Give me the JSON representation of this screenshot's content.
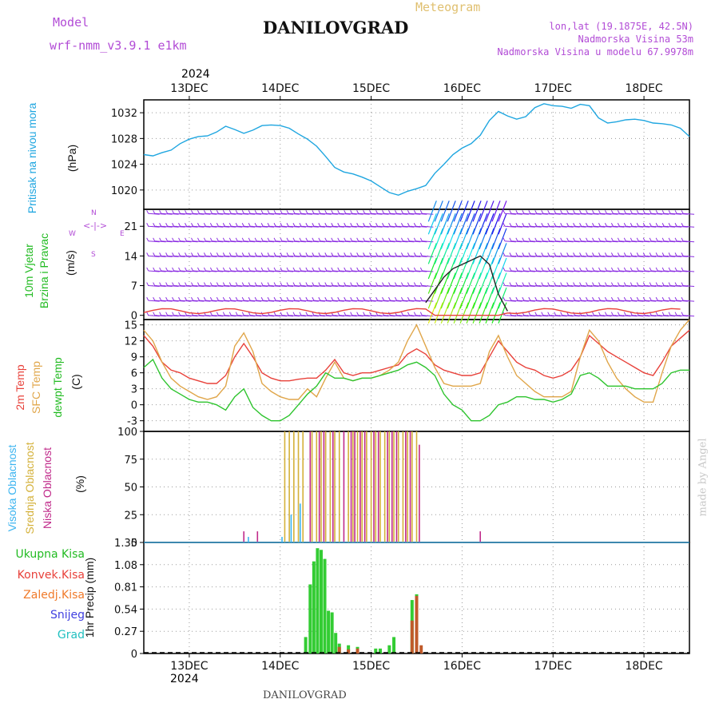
{
  "header": {
    "model_label": "Model",
    "model_name": "wrf-nmm_v3.9.1  e1km",
    "meteogram_label": "Meteogram",
    "station": "DANILOVGRAD",
    "lonlat": "lon,lat (19.1875E, 42.5N)",
    "altitude": "Nadmorska Visina 53m",
    "model_altitude": "Nadmorska Visina u modelu 67.9978m",
    "watermark": "made by Angel",
    "footer_station": "DANILOVGRAD"
  },
  "time_axis": {
    "year": "2024",
    "day_labels": [
      "13DEC",
      "14DEC",
      "15DEC",
      "16DEC",
      "17DEC",
      "18DEC"
    ],
    "day_positions": [
      13,
      14,
      15,
      16,
      17,
      18
    ],
    "range": [
      12.5,
      18.5
    ]
  },
  "colors": {
    "pressure": "#1fa6e0",
    "temp2m": "#e8413a",
    "sfc": "#e0a64a",
    "dew": "#2ec42e",
    "high_cloud": "#3cb4f0",
    "mid_cloud": "#d4b13a",
    "low_cloud": "#c02a8a",
    "precip": "#33cc33",
    "precip_conv": "#c05a2a",
    "wind": "#8a2be2",
    "label_pressure": "#1fa6e0",
    "label_wind": "#22bb22"
  },
  "panels": {
    "pressure": {
      "labels": [
        "Pritisak na nivou mora",
        "(hPa)"
      ],
      "yticks": [
        "1020",
        "1024",
        "1028",
        "1032"
      ]
    },
    "wind": {
      "labels": [
        "10m Vjetar",
        "Brzina i Pravac",
        "(m/s)"
      ],
      "compass": "N",
      "compass_w": "W",
      "compass_e": "E",
      "compass_s": "S",
      "yticks": [
        "0",
        "7",
        "14",
        "21"
      ]
    },
    "temp": {
      "labels": [
        "2m Temp",
        "SFC Temp",
        "dewpt Temp",
        "(C)"
      ],
      "yticks": [
        "-3",
        "0",
        "3",
        "6",
        "9",
        "12",
        "15"
      ]
    },
    "cloud": {
      "labels": [
        "Visoka Oblacnost",
        "Srednja Oblacnost",
        "Niska Oblacnost",
        "(%)"
      ],
      "yticks": [
        "0",
        "25",
        "50",
        "75",
        "100"
      ]
    },
    "precip": {
      "legend": [
        "Ukupna Kisa",
        "Konvek.Kisa",
        "Zaledj.Kisa",
        "Snijeg",
        "Grad"
      ],
      "legend_colors": [
        "#22bb22",
        "#e8413a",
        "#f07a2a",
        "#4040e0",
        "#22c0c0"
      ],
      "ylabel": "1hr Precip (mm)",
      "yticks": [
        "0",
        "0.27",
        "0.54",
        "0.81",
        "1.08",
        "1.35"
      ]
    }
  },
  "chart_data": [
    {
      "type": "line",
      "title": "Pritisak na nivou mora",
      "ylabel": "(hPa)",
      "ylim": [
        1017,
        1034
      ],
      "x": [
        12.5,
        12.6,
        12.7,
        12.8,
        12.9,
        13.0,
        13.1,
        13.2,
        13.3,
        13.4,
        13.5,
        13.6,
        13.7,
        13.8,
        13.9,
        14.0,
        14.1,
        14.2,
        14.3,
        14.4,
        14.5,
        14.6,
        14.7,
        14.8,
        14.9,
        15.0,
        15.1,
        15.2,
        15.3,
        15.4,
        15.5,
        15.6,
        15.7,
        15.8,
        15.9,
        16.0,
        16.1,
        16.2,
        16.3,
        16.4,
        16.5,
        16.6,
        16.7,
        16.8,
        16.9,
        17.0,
        17.1,
        17.2,
        17.3,
        17.4,
        17.5,
        17.6,
        17.7,
        17.8,
        17.9,
        18.0,
        18.1,
        18.2,
        18.3,
        18.4,
        18.5
      ],
      "series": [
        {
          "values": [
            1025.5,
            1025.3,
            1025.8,
            1026.2,
            1027.2,
            1027.9,
            1028.3,
            1028.4,
            1029.0,
            1029.9,
            1029.4,
            1028.8,
            1029.3,
            1030.0,
            1030.1,
            1030.0,
            1029.6,
            1028.7,
            1027.9,
            1026.8,
            1025.2,
            1023.5,
            1022.8,
            1022.5,
            1022.0,
            1021.4,
            1020.5,
            1019.6,
            1019.2,
            1019.8,
            1020.2,
            1020.7,
            1022.6,
            1024.0,
            1025.5,
            1026.5,
            1027.2,
            1028.5,
            1030.8,
            1032.2,
            1031.5,
            1031.0,
            1031.4,
            1032.8,
            1033.4,
            1033.1,
            1033.0,
            1032.7,
            1033.3,
            1033.1,
            1031.2,
            1030.4,
            1030.6,
            1030.9,
            1031.0,
            1030.8,
            1030.4,
            1030.3,
            1030.1,
            1029.6,
            1028.3
          ]
        }
      ]
    },
    {
      "type": "line",
      "title": "10m Vjetar Brzina i Pravac",
      "ylabel": "(m/s)",
      "ylim": [
        -1,
        25
      ],
      "x": [
        15.6,
        15.7,
        15.8,
        15.9,
        16.0,
        16.1,
        16.2,
        16.3,
        16.4,
        16.5
      ],
      "series": [
        {
          "values": [
            3,
            6,
            9,
            11,
            12,
            13,
            14,
            12,
            5,
            1
          ]
        }
      ]
    },
    {
      "type": "line",
      "title": "2m Temp / SFC Temp / dewpt Temp",
      "ylabel": "(C)",
      "ylim": [
        -5,
        16
      ],
      "x": [
        12.5,
        12.6,
        12.7,
        12.8,
        12.9,
        13.0,
        13.1,
        13.2,
        13.3,
        13.4,
        13.5,
        13.6,
        13.7,
        13.8,
        13.9,
        14.0,
        14.1,
        14.2,
        14.3,
        14.4,
        14.5,
        14.6,
        14.7,
        14.8,
        14.9,
        15.0,
        15.1,
        15.2,
        15.3,
        15.4,
        15.5,
        15.6,
        15.7,
        15.8,
        15.9,
        16.0,
        16.1,
        16.2,
        16.3,
        16.4,
        16.5,
        16.6,
        16.7,
        16.8,
        16.9,
        17.0,
        17.1,
        17.2,
        17.3,
        17.4,
        17.5,
        17.6,
        17.7,
        17.8,
        17.9,
        18.0,
        18.1,
        18.2,
        18.3,
        18.4,
        18.5
      ],
      "series": [
        {
          "name": "2m Temp",
          "values": [
            13,
            11,
            8,
            6.5,
            6,
            5,
            4.5,
            4,
            4,
            5.5,
            9,
            11.5,
            9,
            6,
            5,
            4.5,
            4.5,
            4.8,
            5,
            5,
            6.5,
            8.5,
            6,
            5.5,
            6,
            6,
            6.5,
            7,
            7.5,
            9.5,
            10.5,
            9.5,
            7.5,
            6.5,
            6,
            5.5,
            5.5,
            6,
            9,
            12,
            10,
            8,
            7,
            6.5,
            5.5,
            5,
            5.5,
            6.5,
            9,
            13,
            11.5,
            10,
            9,
            8,
            7,
            6,
            5.5,
            8,
            11,
            12.5,
            14
          ]
        },
        {
          "name": "SFC Temp",
          "values": [
            14,
            12,
            8,
            5,
            3.5,
            2.5,
            1.5,
            1,
            1.5,
            3.5,
            11,
            13.5,
            10,
            4,
            2.5,
            1.5,
            1,
            1,
            3,
            1.5,
            5,
            8,
            5,
            4.5,
            5,
            5,
            5.5,
            6.5,
            8,
            12,
            15,
            11,
            7,
            4,
            3.5,
            3.5,
            3.5,
            4,
            10,
            13,
            9,
            5.5,
            4,
            2.5,
            1.5,
            1.5,
            1.5,
            2.5,
            9,
            14,
            12,
            8,
            5,
            3,
            1.5,
            0.5,
            0.5,
            6,
            11,
            14,
            16
          ]
        },
        {
          "name": "dewpt Temp",
          "values": [
            7,
            8.5,
            5,
            3,
            2,
            1,
            0.5,
            0.5,
            0,
            -1,
            1.5,
            3,
            -0.5,
            -2,
            -3,
            -3,
            -2,
            0,
            2,
            3.5,
            6,
            5,
            5,
            4.5,
            5,
            5,
            5.5,
            6,
            6.5,
            7.5,
            8,
            7,
            5.5,
            2,
            0,
            -1,
            -3,
            -3,
            -2,
            0,
            0.5,
            1.5,
            1.5,
            1,
            1,
            0.5,
            1,
            2,
            5.5,
            6,
            5,
            3.5,
            3.5,
            3.5,
            3,
            3,
            3,
            4,
            6,
            6.5,
            6.5
          ]
        }
      ]
    },
    {
      "type": "bar",
      "title": "Visoka / Srednja / Niska Oblacnost",
      "ylabel": "(%)",
      "ylim": [
        0,
        100
      ],
      "series": [
        {
          "name": "Srednja Oblacnost",
          "x": [
            14.05,
            14.1,
            14.15,
            14.2,
            14.25,
            14.35,
            14.4,
            14.45,
            14.5,
            14.55,
            14.6,
            14.65,
            14.75,
            14.8,
            14.85,
            14.9,
            14.95,
            15.0,
            15.05,
            15.1,
            15.15,
            15.2,
            15.25,
            15.3,
            15.35,
            15.4,
            15.45,
            15.5
          ],
          "values": [
            100,
            100,
            100,
            100,
            100,
            100,
            100,
            100,
            100,
            100,
            100,
            100,
            100,
            100,
            100,
            100,
            100,
            100,
            100,
            100,
            100,
            100,
            100,
            100,
            100,
            100,
            100,
            100
          ]
        },
        {
          "name": "Niska Oblacnost",
          "x": [
            13.6,
            13.75,
            14.33,
            14.43,
            14.48,
            14.58,
            14.7,
            14.78,
            14.82,
            14.88,
            14.93,
            15.03,
            15.08,
            15.18,
            15.23,
            15.28,
            15.38,
            15.43,
            15.53,
            16.2
          ],
          "values": [
            10,
            10,
            100,
            100,
            100,
            100,
            100,
            100,
            100,
            100,
            100,
            100,
            100,
            100,
            100,
            100,
            100,
            100,
            88,
            10
          ]
        },
        {
          "name": "Visoka Oblacnost",
          "x": [
            13.65,
            14.02,
            14.12,
            14.22
          ],
          "values": [
            5,
            5,
            25,
            35
          ]
        }
      ]
    },
    {
      "type": "bar",
      "title": "1hr Precip",
      "ylabel": "1hr Precip (mm)",
      "ylim": [
        0,
        1.35
      ],
      "series": [
        {
          "name": "Ukupna Kisa",
          "x": [
            14.28,
            14.33,
            14.37,
            14.41,
            14.45,
            14.49,
            14.53,
            14.57,
            14.61,
            14.65,
            14.75,
            14.85,
            15.05,
            15.1,
            15.2,
            15.25,
            15.45,
            15.5
          ],
          "values": [
            0.2,
            0.84,
            1.12,
            1.28,
            1.26,
            1.15,
            0.52,
            0.5,
            0.25,
            0.12,
            0.1,
            0.08,
            0.06,
            0.06,
            0.1,
            0.2,
            0.65,
            0.72
          ]
        },
        {
          "name": "Konvek.Kisa",
          "x": [
            14.65,
            14.75,
            14.85,
            15.45,
            15.5,
            15.55
          ],
          "values": [
            0.08,
            0.05,
            0.06,
            0.4,
            0.7,
            0.1
          ]
        }
      ]
    }
  ]
}
